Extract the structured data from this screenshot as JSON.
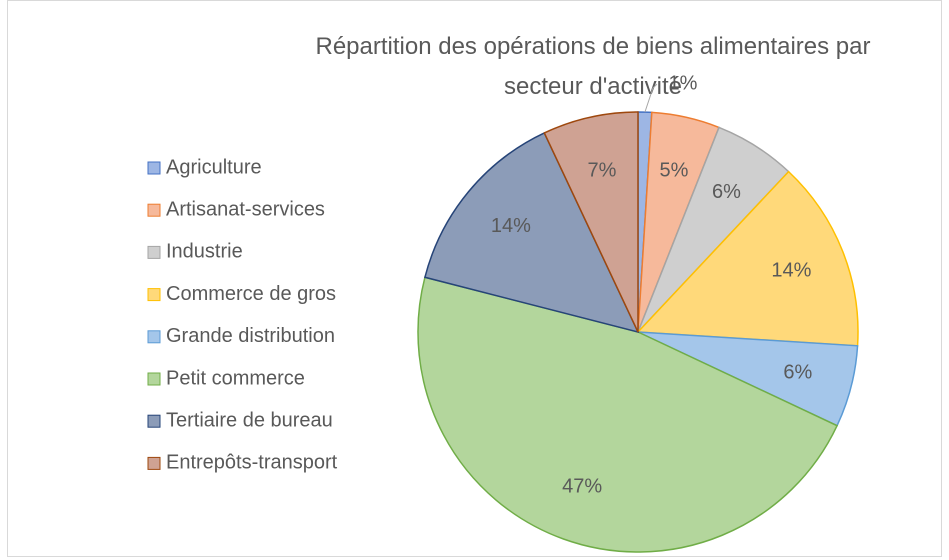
{
  "chart_data": {
    "type": "pie",
    "title": "Répartition des opérations de biens alimentaires par secteur d'activité",
    "categories": [
      "Agriculture",
      "Artisanat-services",
      "Industrie",
      "Commerce de gros",
      "Grande distribution",
      "Petit commerce",
      "Tertiaire de bureau",
      "Entrepôts-transport"
    ],
    "values": [
      1,
      5,
      6,
      14,
      6,
      47,
      14,
      7
    ],
    "value_labels": [
      "1%",
      "5%",
      "6%",
      "14%",
      "6%",
      "47%",
      "14%",
      "7%"
    ],
    "colors": [
      "#9db6e4",
      "#f6b99b",
      "#cfcfcf",
      "#ffd97a",
      "#a4c6ea",
      "#b3d69c",
      "#8c9cb8",
      "#cfa293"
    ],
    "edge_colors": [
      "#4472c4",
      "#ed7d31",
      "#a5a5a5",
      "#ffc000",
      "#5b9bd5",
      "#70ad47",
      "#264478",
      "#9e480e"
    ],
    "legend": "left"
  }
}
